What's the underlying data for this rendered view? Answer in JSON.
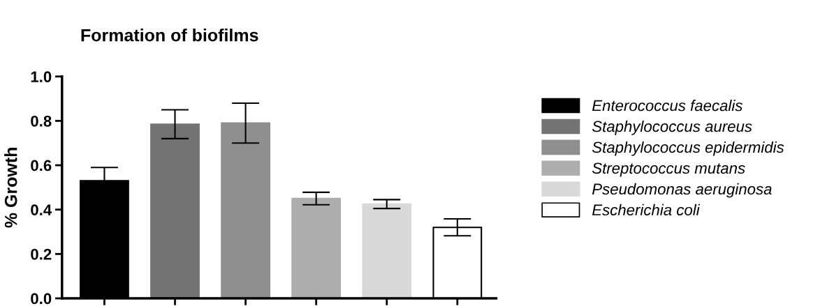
{
  "chart_data": {
    "type": "bar",
    "title": "Formation of biofilms",
    "ylabel": "% Growth",
    "categories": [
      null,
      null,
      null,
      null,
      null,
      null
    ],
    "series": [
      {
        "name": "Enterococcus faecalis",
        "color": "#000000",
        "values": [
          0.53,
          null,
          null,
          null,
          null,
          null
        ],
        "errors": [
          0.06,
          null,
          null,
          null,
          null,
          null
        ]
      },
      {
        "name": "Staphylococcus aureus",
        "color": "#737373",
        "values": [
          null,
          0.785,
          null,
          null,
          null,
          null
        ],
        "errors": [
          null,
          0.065,
          null,
          null,
          null,
          null
        ]
      },
      {
        "name": "Staphylococcus epidermidis",
        "color": "#8f8f8f",
        "values": [
          null,
          null,
          0.79,
          null,
          null,
          null
        ],
        "errors": [
          null,
          null,
          0.09,
          null,
          null,
          null
        ]
      },
      {
        "name": "Streptococcus mutans",
        "color": "#adadad",
        "values": [
          null,
          null,
          null,
          0.45,
          null,
          null
        ],
        "errors": [
          null,
          null,
          null,
          0.028,
          null,
          null
        ]
      },
      {
        "name": "Pseudomonas aeruginosa",
        "color": "#d9d9d9",
        "values": [
          null,
          null,
          null,
          null,
          0.425,
          null
        ],
        "errors": [
          null,
          null,
          null,
          null,
          0.02,
          null
        ]
      },
      {
        "name": "Escherichia coli",
        "color": "#ffffff",
        "values": [
          null,
          null,
          null,
          null,
          null,
          0.32
        ],
        "errors": [
          null,
          null,
          null,
          null,
          null,
          0.038
        ]
      }
    ],
    "ylim": [
      0,
      1.0
    ],
    "yticks": [
      {
        "value": 0,
        "label": "0.0"
      },
      {
        "value": 0.2,
        "label": "0.2"
      },
      {
        "value": 0.4,
        "label": "0.4"
      },
      {
        "value": 0.6,
        "label": "0.6"
      },
      {
        "value": 0.8,
        "label": "0.8"
      },
      {
        "value": 1.0,
        "label": "1.0"
      }
    ],
    "grid": false,
    "legend": "right"
  }
}
